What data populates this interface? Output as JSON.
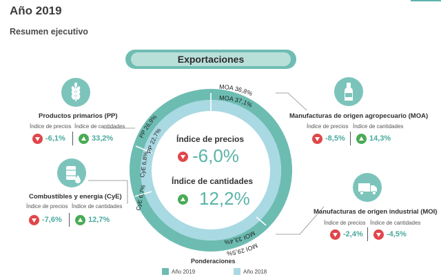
{
  "header": {
    "title": "Año 2019",
    "subtitle": "Resumen ejecutivo"
  },
  "exportaciones_label": "Exportaciones",
  "center": {
    "precios_label": "Índice de precios",
    "precios_value": "-6,0%",
    "cantidades_label": "Índice de cantidades",
    "cantidades_value": "12,2%"
  },
  "ring_labels": {
    "outer_moa": "MOA 36,8%",
    "outer_moi": "MOI 29,5%",
    "outer_pp": "PP 26,9%",
    "outer_cye": "CyE 6,7%",
    "inner_moa": "MOA 37,1%",
    "inner_moi": "MOI 33,4%",
    "inner_pp": "PP 22,7%",
    "inner_cye": "CyE 6,8%"
  },
  "sectors": {
    "pp": {
      "name": "Productos primarios (PP)",
      "precios_label": "Índice de precios",
      "cantidades_label": "Índice de cantidades",
      "precios_value": "-6,1%",
      "cantidades_value": "33,2%"
    },
    "cye": {
      "name": "Combustibles y energía (CyE)",
      "precios_label": "Índice de precios",
      "cantidades_label": "Índice de cantidades",
      "precios_value": "-7,6%",
      "cantidades_value": "12,7%"
    },
    "moa": {
      "name": "Manufacturas de origen agropecuario (MOA)",
      "precios_label": "Índice de precios",
      "cantidades_label": "Índice de cantidades",
      "precios_value": "-8,5%",
      "cantidades_value": "14,3%"
    },
    "moi": {
      "name": "Manufacturas de origen industrial (MOI)",
      "precios_label": "Índice de precios",
      "cantidades_label": "Índice de cantidades",
      "precios_value": "-2,4%",
      "cantidades_value": "-4,5%"
    }
  },
  "legend": {
    "title": "Ponderaciones",
    "item_2019": "Año 2019",
    "item_2018": "Año 2018"
  },
  "colors": {
    "teal_dark": "#6fbdb3",
    "teal_light": "#b9dfd9",
    "ring_outer": "#6dbcb2",
    "ring_inner": "#a9d9e3",
    "value_green": "#4aa99d",
    "down_red": "#e0464a",
    "up_green": "#4bab56"
  },
  "icons": {
    "pp": "wheat-icon",
    "cye": "oil-barrel-icon",
    "moa": "bottle-icon",
    "moi": "truck-icon"
  }
}
